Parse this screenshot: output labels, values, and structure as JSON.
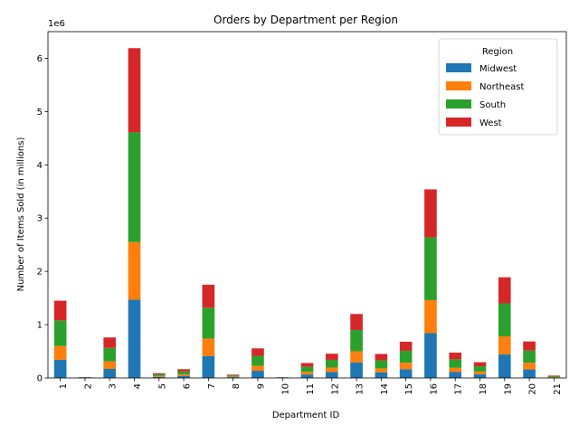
{
  "chart_data": {
    "type": "bar",
    "stacked": true,
    "title": "Orders by Department per Region",
    "xlabel": "Department ID",
    "ylabel": "Number of Items Sold (in millions)",
    "y_offset_label": "1e6",
    "ylim": [
      0,
      6500000
    ],
    "yticks": [
      0,
      1000000,
      2000000,
      3000000,
      4000000,
      5000000,
      6000000
    ],
    "ytick_labels": [
      "0",
      "1",
      "2",
      "3",
      "4",
      "5",
      "6"
    ],
    "categories": [
      "1",
      "2",
      "3",
      "4",
      "5",
      "6",
      "7",
      "8",
      "9",
      "10",
      "11",
      "12",
      "13",
      "14",
      "15",
      "16",
      "17",
      "18",
      "19",
      "20",
      "21"
    ],
    "legend": {
      "title": "Region",
      "placement": "top-right"
    },
    "grid": false,
    "series": [
      {
        "name": "Midwest",
        "color": "#1f77b4",
        "values": [
          340000,
          4000,
          170000,
          1470000,
          20000,
          40000,
          410000,
          15000,
          135000,
          3000,
          65000,
          110000,
          290000,
          105000,
          165000,
          840000,
          110000,
          70000,
          440000,
          160000,
          10000
        ]
      },
      {
        "name": "Northeast",
        "color": "#ff7f0e",
        "values": [
          260000,
          4000,
          140000,
          1080000,
          16000,
          30000,
          330000,
          12000,
          95000,
          3000,
          50000,
          85000,
          210000,
          75000,
          120000,
          620000,
          80000,
          50000,
          340000,
          125000,
          8000
        ]
      },
      {
        "name": "South",
        "color": "#2ca02c",
        "values": [
          480000,
          5000,
          255000,
          2060000,
          30000,
          55000,
          580000,
          20000,
          185000,
          5000,
          95000,
          145000,
          400000,
          150000,
          225000,
          1180000,
          160000,
          100000,
          620000,
          230000,
          18000
        ]
      },
      {
        "name": "West",
        "color": "#d62728",
        "values": [
          370000,
          4000,
          195000,
          1580000,
          22000,
          40000,
          430000,
          15000,
          140000,
          3000,
          70000,
          115000,
          300000,
          120000,
          170000,
          900000,
          125000,
          75000,
          490000,
          170000,
          10000
        ]
      }
    ]
  }
}
